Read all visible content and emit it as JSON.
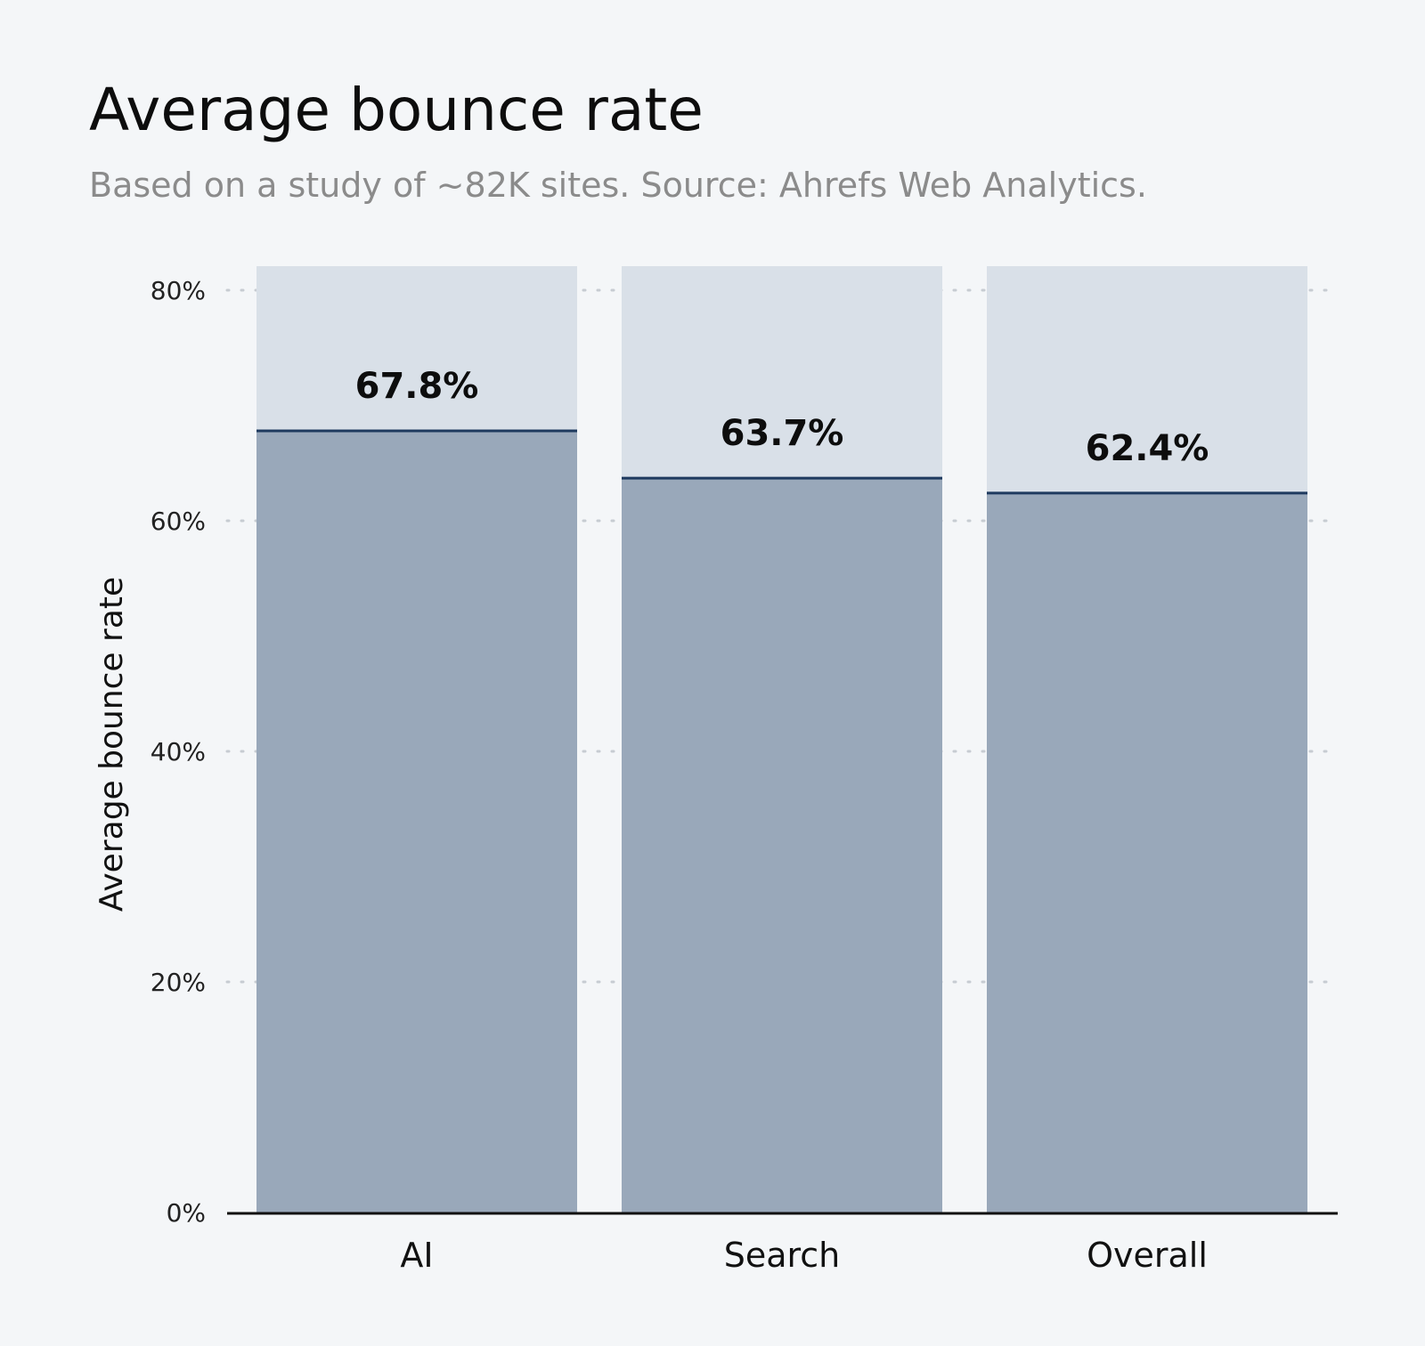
{
  "title": "Average bounce rate",
  "subtitle": "Based on a study of ~82K sites. Source: Ahrefs Web Analytics.",
  "colors": {
    "background": "#f4f6f8",
    "bar_fill": "#99a8ba",
    "bar_track": "#d9e0e8",
    "bar_top_line": "#1e3a5f",
    "grid": "#c7ccd2",
    "axis": "#111111"
  },
  "chart_data": {
    "type": "bar",
    "title": "Average bounce rate",
    "subtitle": "Based on a study of ~82K sites. Source: Ahrefs Web Analytics.",
    "xlabel": "",
    "ylabel": "Average bounce rate",
    "categories": [
      "AI",
      "Search",
      "Overall"
    ],
    "values": [
      67.8,
      63.7,
      62.4
    ],
    "data_labels": [
      "67.8%",
      "63.7%",
      "62.4%"
    ],
    "ylim": [
      0,
      80
    ],
    "y_ticks": [
      0,
      20,
      40,
      60,
      80
    ],
    "y_tick_labels": [
      "0%",
      "20%",
      "40%",
      "60%",
      "80%"
    ],
    "grid": "horizontal dotted",
    "legend": "none"
  }
}
